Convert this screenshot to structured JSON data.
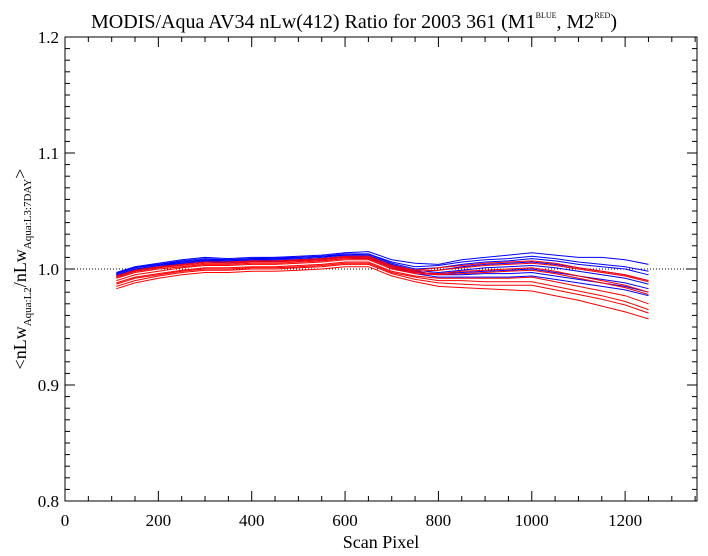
{
  "chart_data": {
    "type": "line",
    "title_parts": {
      "main": "MODIS/Aqua AV34 nLw(412) Ratio for 2003 361 (M1",
      "sup1": "BLUE",
      "mid": ", M2",
      "sup2": "RED",
      "end": ")"
    },
    "xlabel": "Scan Pixel",
    "ylabel_parts": {
      "a": "<nLw",
      "sub1": "Aqua:L2",
      "b": "/nLw",
      "sub2": "Aqua:L3:7DAY",
      "c": ">"
    },
    "xlim": [
      0,
      1354
    ],
    "ylim": [
      0.8,
      1.2
    ],
    "xticks": [
      0,
      200,
      400,
      600,
      800,
      1000,
      1200
    ],
    "yticks": [
      0.8,
      0.9,
      1.0,
      1.1,
      1.2
    ],
    "xtick_labels": [
      "0",
      "200",
      "400",
      "600",
      "800",
      "1000",
      "1200"
    ],
    "ytick_labels": [
      "0.8",
      "0.9",
      "1.0",
      "1.1",
      "1.2"
    ],
    "reference_line": 1.0,
    "colors": {
      "M1": "#0000ff",
      "M2": "#ff0000",
      "reference": "#000000"
    },
    "x": [
      110,
      150,
      200,
      250,
      300,
      350,
      400,
      450,
      500,
      550,
      600,
      650,
      700,
      750,
      800,
      850,
      900,
      950,
      1000,
      1050,
      1100,
      1150,
      1200,
      1250
    ],
    "series": [
      {
        "group": "M1",
        "values": [
          0.996,
          1.002,
          1.005,
          1.008,
          1.01,
          1.009,
          1.01,
          1.01,
          1.011,
          1.012,
          1.014,
          1.015,
          1.008,
          1.005,
          1.004,
          1.008,
          1.01,
          1.012,
          1.014,
          1.012,
          1.01,
          1.01,
          1.008,
          1.004
        ]
      },
      {
        "group": "M1",
        "values": [
          0.995,
          1.0,
          1.003,
          1.006,
          1.008,
          1.007,
          1.008,
          1.009,
          1.01,
          1.011,
          1.012,
          1.013,
          1.005,
          1.0,
          1.001,
          1.004,
          1.006,
          1.007,
          1.009,
          1.007,
          1.004,
          1.002,
          1.0,
          0.995
        ]
      },
      {
        "group": "M1",
        "values": [
          0.994,
          0.999,
          1.002,
          1.005,
          1.007,
          1.006,
          1.007,
          1.008,
          1.008,
          1.009,
          1.011,
          1.011,
          1.003,
          0.998,
          0.999,
          1.002,
          1.004,
          1.005,
          1.006,
          1.004,
          1.001,
          0.998,
          0.995,
          0.99
        ]
      },
      {
        "group": "M1",
        "values": [
          0.996,
          1.001,
          1.004,
          1.006,
          1.008,
          1.008,
          1.009,
          1.009,
          1.009,
          1.01,
          1.012,
          1.012,
          1.004,
          0.999,
          0.997,
          0.999,
          1.001,
          1.002,
          1.003,
          1.001,
          0.998,
          0.995,
          0.992,
          0.987
        ]
      },
      {
        "group": "M1",
        "values": [
          0.993,
          0.998,
          1.001,
          1.004,
          1.006,
          1.005,
          1.006,
          1.007,
          1.007,
          1.008,
          1.01,
          1.009,
          1.002,
          0.997,
          0.996,
          0.997,
          0.998,
          0.999,
          1.0,
          0.997,
          0.994,
          0.991,
          0.988,
          0.983
        ]
      },
      {
        "group": "M1",
        "values": [
          0.995,
          1.0,
          1.003,
          1.005,
          1.007,
          1.007,
          1.008,
          1.008,
          1.008,
          1.009,
          1.011,
          1.01,
          1.003,
          0.998,
          0.995,
          0.995,
          0.996,
          0.996,
          0.997,
          0.994,
          0.991,
          0.988,
          0.985,
          0.98
        ]
      },
      {
        "group": "M1",
        "values": [
          0.997,
          1.002,
          1.004,
          1.007,
          1.009,
          1.008,
          1.009,
          1.01,
          1.01,
          1.011,
          1.013,
          1.013,
          1.006,
          1.002,
          1.003,
          1.006,
          1.008,
          1.009,
          1.011,
          1.009,
          1.006,
          1.004,
          1.002,
          0.998
        ]
      },
      {
        "group": "M1",
        "values": [
          0.994,
          0.999,
          1.002,
          1.004,
          1.006,
          1.006,
          1.007,
          1.007,
          1.007,
          1.008,
          1.01,
          1.009,
          1.001,
          0.996,
          0.993,
          0.993,
          0.993,
          0.993,
          0.994,
          0.991,
          0.988,
          0.985,
          0.982,
          0.977
        ]
      },
      {
        "group": "M2",
        "values": [
          0.993,
          0.998,
          1.001,
          1.003,
          1.005,
          1.005,
          1.006,
          1.006,
          1.007,
          1.008,
          1.01,
          1.01,
          1.002,
          0.998,
          0.999,
          1.001,
          1.003,
          1.004,
          1.005,
          1.003,
          1.0,
          0.997,
          0.994,
          0.989
        ]
      },
      {
        "group": "M2",
        "values": [
          0.99,
          0.995,
          0.998,
          1.001,
          1.003,
          1.003,
          1.004,
          1.004,
          1.005,
          1.006,
          1.008,
          1.008,
          1.0,
          0.996,
          0.995,
          0.996,
          0.997,
          0.998,
          0.999,
          0.996,
          0.992,
          0.988,
          0.984,
          0.978
        ]
      },
      {
        "group": "M2",
        "values": [
          0.988,
          0.993,
          0.996,
          0.999,
          1.001,
          1.001,
          1.002,
          1.002,
          1.003,
          1.004,
          1.006,
          1.006,
          0.998,
          0.994,
          0.992,
          0.992,
          0.992,
          0.992,
          0.993,
          0.989,
          0.985,
          0.981,
          0.977,
          0.97
        ]
      },
      {
        "group": "M2",
        "values": [
          0.985,
          0.99,
          0.994,
          0.997,
          0.999,
          0.999,
          1.0,
          1.0,
          1.001,
          1.002,
          1.004,
          1.004,
          0.996,
          0.991,
          0.988,
          0.987,
          0.986,
          0.986,
          0.986,
          0.982,
          0.978,
          0.974,
          0.969,
          0.962
        ]
      },
      {
        "group": "M2",
        "values": [
          0.983,
          0.988,
          0.992,
          0.995,
          0.997,
          0.997,
          0.998,
          0.998,
          0.999,
          1.0,
          1.002,
          1.002,
          0.994,
          0.989,
          0.985,
          0.984,
          0.983,
          0.982,
          0.981,
          0.977,
          0.973,
          0.968,
          0.963,
          0.957
        ]
      },
      {
        "group": "M2",
        "values": [
          0.994,
          0.999,
          1.002,
          1.004,
          1.006,
          1.006,
          1.007,
          1.007,
          1.008,
          1.009,
          1.011,
          1.011,
          1.003,
          0.999,
          1.001,
          1.003,
          1.005,
          1.006,
          1.007,
          1.005,
          1.001,
          0.998,
          0.995,
          0.99
        ]
      },
      {
        "group": "M2",
        "values": [
          0.992,
          0.997,
          1.0,
          1.002,
          1.004,
          1.004,
          1.005,
          1.005,
          1.006,
          1.007,
          1.009,
          1.009,
          1.001,
          0.997,
          0.996,
          0.998,
          0.999,
          1.0,
          1.001,
          0.998,
          0.994,
          0.99,
          0.986,
          0.98
        ]
      },
      {
        "group": "M2",
        "values": [
          0.987,
          0.992,
          0.995,
          0.998,
          1.0,
          1.0,
          1.001,
          1.001,
          1.002,
          1.003,
          1.005,
          1.005,
          0.997,
          0.993,
          0.99,
          0.99,
          0.989,
          0.989,
          0.989,
          0.985,
          0.981,
          0.977,
          0.972,
          0.965
        ]
      }
    ]
  }
}
